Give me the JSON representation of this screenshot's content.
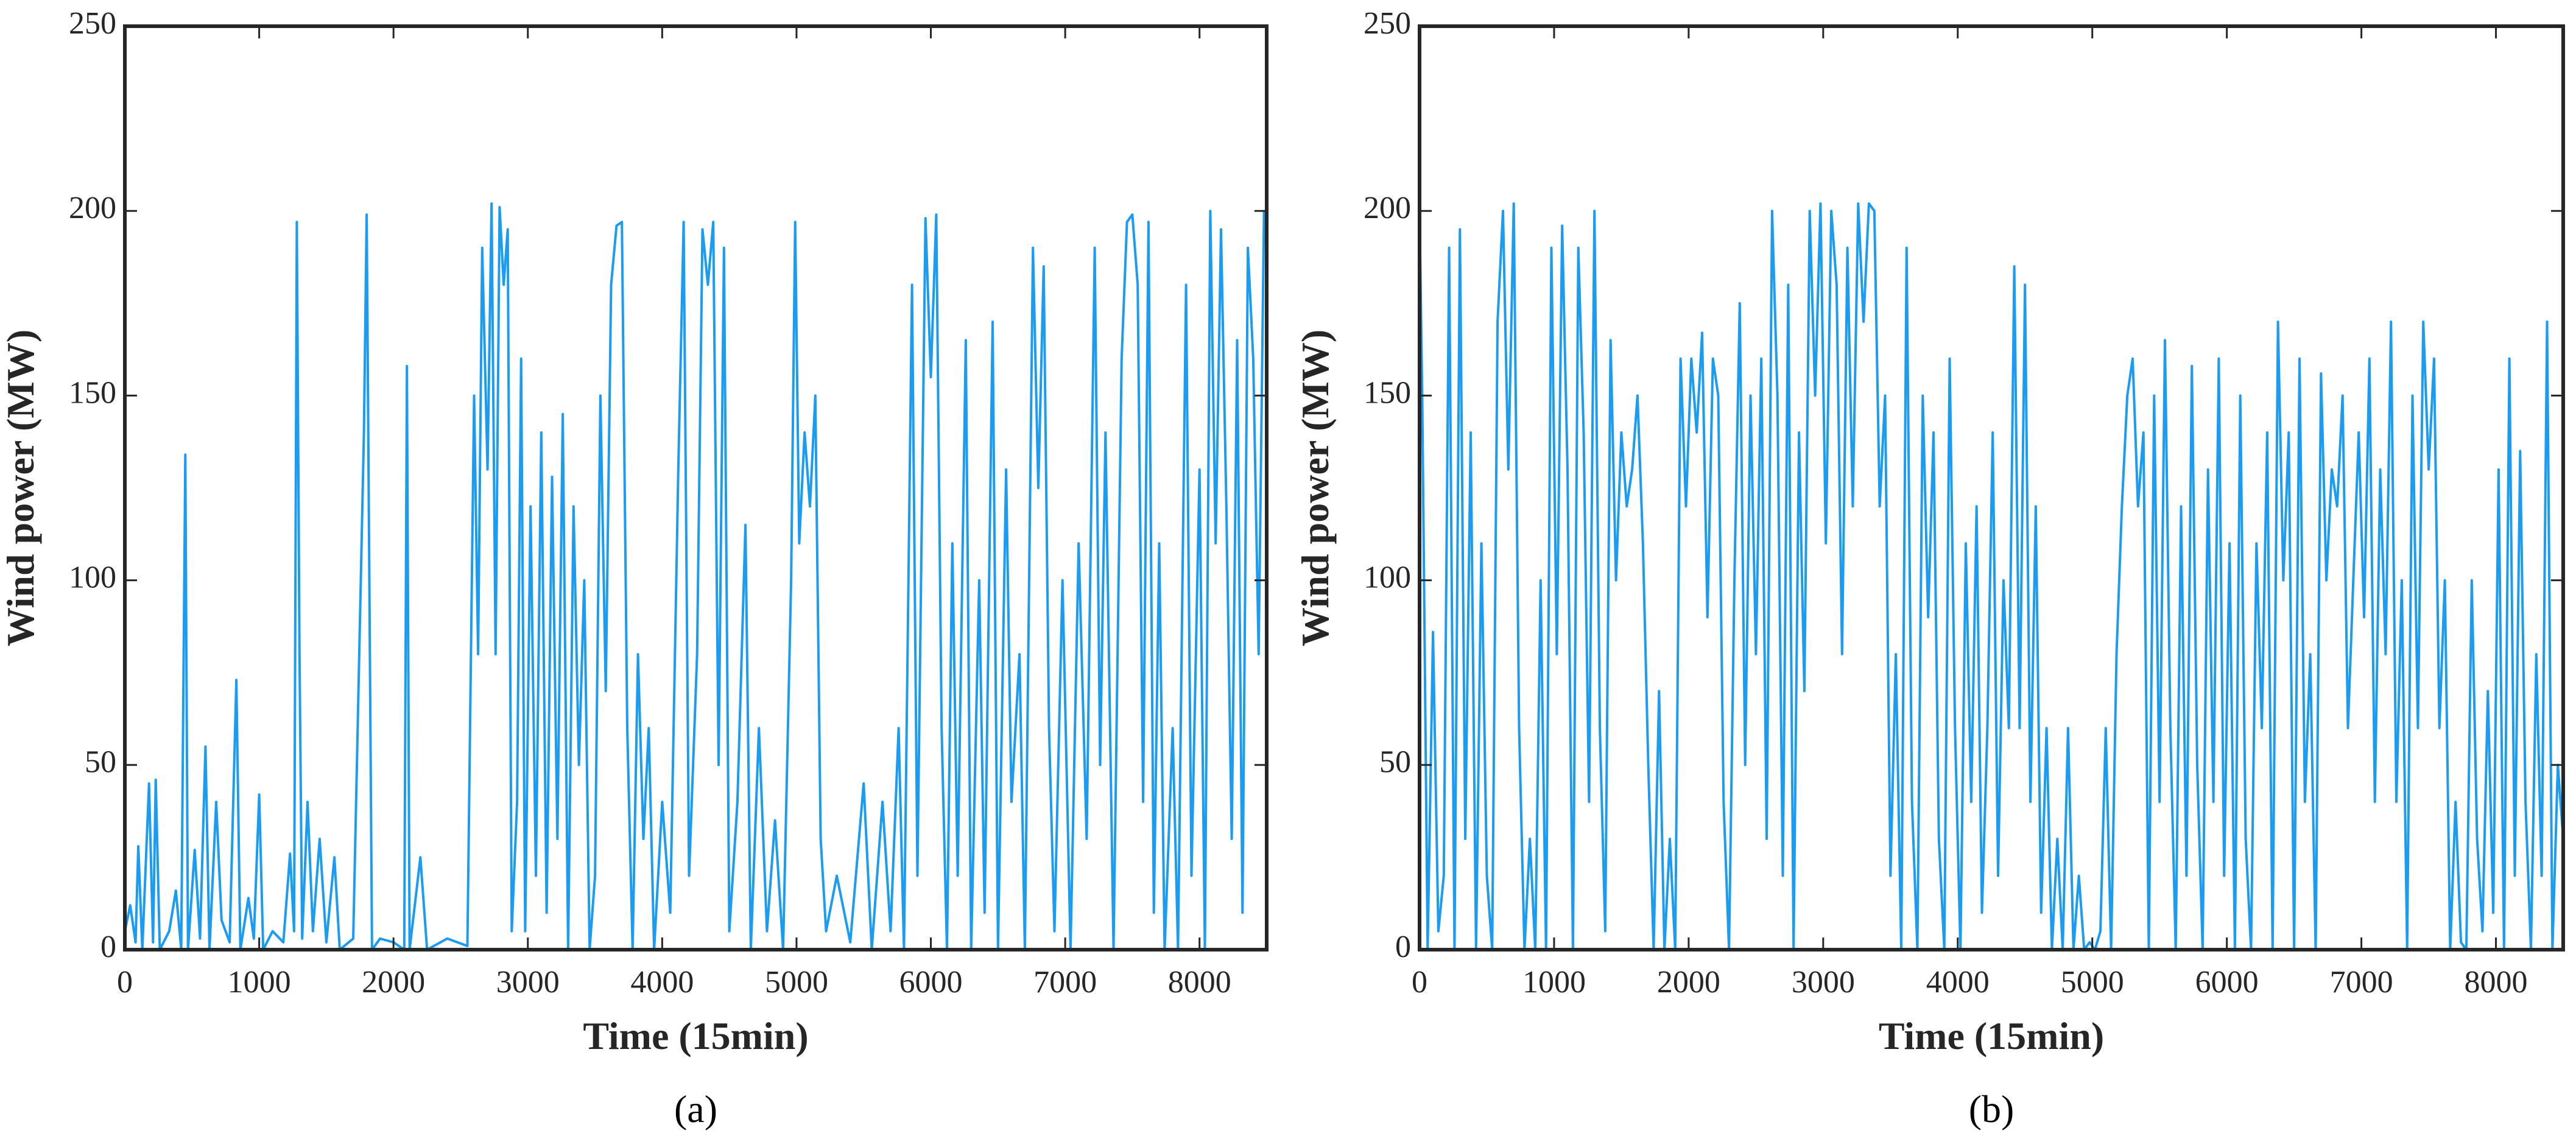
{
  "chart_data": [
    {
      "type": "line",
      "xlabel": "Time (15min)",
      "ylabel": "Wind power (MW)",
      "caption": "(a)",
      "color": "#1a9cf2",
      "xlim": [
        0,
        8500
      ],
      "xticks": [
        0,
        1000,
        2000,
        3000,
        4000,
        5000,
        6000,
        7000,
        8000
      ],
      "ylim": [
        0,
        250
      ],
      "yticks": [
        0,
        50,
        100,
        150,
        200,
        250
      ],
      "x": [
        0,
        40,
        80,
        100,
        130,
        180,
        210,
        230,
        260,
        330,
        380,
        420,
        450,
        470,
        520,
        560,
        600,
        630,
        680,
        720,
        780,
        830,
        860,
        920,
        960,
        1000,
        1030,
        1100,
        1180,
        1230,
        1260,
        1280,
        1300,
        1320,
        1360,
        1400,
        1450,
        1500,
        1560,
        1600,
        1700,
        1780,
        1800,
        1820,
        1840,
        1900,
        2000,
        2080,
        2100,
        2120,
        2200,
        2250,
        2400,
        2550,
        2600,
        2630,
        2660,
        2700,
        2730,
        2760,
        2790,
        2820,
        2850,
        2880,
        2920,
        2950,
        2980,
        3020,
        3060,
        3100,
        3140,
        3180,
        3220,
        3260,
        3300,
        3340,
        3380,
        3420,
        3460,
        3500,
        3540,
        3580,
        3620,
        3660,
        3700,
        3740,
        3780,
        3820,
        3860,
        3900,
        3940,
        4000,
        4060,
        4120,
        4160,
        4200,
        4260,
        4300,
        4340,
        4380,
        4420,
        4460,
        4500,
        4560,
        4620,
        4660,
        4720,
        4780,
        4840,
        4900,
        4960,
        4990,
        5020,
        5060,
        5100,
        5140,
        5180,
        5220,
        5300,
        5400,
        5500,
        5560,
        5640,
        5700,
        5760,
        5800,
        5860,
        5900,
        5960,
        6000,
        6040,
        6080,
        6120,
        6160,
        6200,
        6260,
        6300,
        6360,
        6400,
        6460,
        6500,
        6560,
        6600,
        6660,
        6700,
        6760,
        6800,
        6840,
        6880,
        6920,
        6980,
        7040,
        7100,
        7160,
        7220,
        7260,
        7300,
        7360,
        7420,
        7460,
        7500,
        7540,
        7580,
        7620,
        7660,
        7700,
        7740,
        7800,
        7840,
        7900,
        7940,
        8000,
        8040,
        8080,
        8120,
        8160,
        8200,
        8240,
        8280,
        8320,
        8360,
        8400,
        8440,
        8480
      ],
      "values": [
        5,
        12,
        2,
        28,
        0,
        45,
        2,
        46,
        0,
        5,
        16,
        0,
        134,
        0,
        27,
        3,
        55,
        0,
        40,
        8,
        2,
        73,
        0,
        14,
        3,
        42,
        0,
        5,
        2,
        26,
        5,
        197,
        80,
        3,
        40,
        5,
        30,
        2,
        25,
        0,
        3,
        140,
        199,
        100,
        0,
        3,
        2,
        0,
        158,
        0,
        25,
        0,
        3,
        1,
        150,
        80,
        190,
        130,
        202,
        80,
        201,
        180,
        195,
        5,
        40,
        160,
        5,
        120,
        20,
        140,
        10,
        128,
        30,
        145,
        0,
        120,
        50,
        100,
        0,
        20,
        150,
        70,
        180,
        196,
        197,
        60,
        0,
        80,
        30,
        60,
        0,
        40,
        10,
        130,
        197,
        20,
        80,
        195,
        180,
        197,
        50,
        190,
        5,
        40,
        115,
        0,
        60,
        5,
        35,
        0,
        100,
        197,
        110,
        140,
        120,
        150,
        30,
        5,
        20,
        2,
        45,
        0,
        40,
        5,
        60,
        0,
        180,
        20,
        198,
        155,
        199,
        60,
        0,
        110,
        20,
        165,
        0,
        100,
        10,
        170,
        0,
        130,
        40,
        80,
        0,
        190,
        125,
        185,
        60,
        5,
        100,
        0,
        110,
        30,
        190,
        50,
        140,
        0,
        160,
        197,
        199,
        180,
        40,
        197,
        10,
        110,
        0,
        60,
        0,
        180,
        20,
        130,
        0,
        200,
        110,
        195,
        120,
        30,
        165,
        10,
        190,
        160,
        80,
        200
      ]
    },
    {
      "type": "line",
      "xlabel": "Time (15min)",
      "ylabel": "Wind power (MW)",
      "caption": "(b)",
      "color": "#1a9cf2",
      "xlim": [
        0,
        8500
      ],
      "xticks": [
        0,
        1000,
        2000,
        3000,
        4000,
        5000,
        6000,
        7000,
        8000
      ],
      "ylim": [
        0,
        250
      ],
      "yticks": [
        0,
        50,
        100,
        150,
        200,
        250
      ],
      "x": [
        0,
        20,
        60,
        100,
        140,
        180,
        220,
        260,
        300,
        340,
        380,
        420,
        460,
        500,
        540,
        580,
        620,
        660,
        700,
        740,
        780,
        820,
        860,
        900,
        940,
        980,
        1020,
        1060,
        1100,
        1140,
        1180,
        1220,
        1260,
        1300,
        1340,
        1380,
        1420,
        1460,
        1500,
        1540,
        1580,
        1620,
        1660,
        1700,
        1740,
        1780,
        1820,
        1860,
        1900,
        1940,
        1980,
        2020,
        2060,
        2100,
        2140,
        2180,
        2220,
        2260,
        2300,
        2340,
        2380,
        2420,
        2460,
        2500,
        2540,
        2580,
        2620,
        2660,
        2700,
        2740,
        2780,
        2820,
        2860,
        2900,
        2940,
        2980,
        3020,
        3060,
        3100,
        3140,
        3180,
        3220,
        3260,
        3300,
        3340,
        3380,
        3420,
        3460,
        3500,
        3540,
        3580,
        3620,
        3660,
        3700,
        3740,
        3780,
        3820,
        3860,
        3900,
        3940,
        3980,
        4020,
        4060,
        4100,
        4140,
        4180,
        4220,
        4260,
        4300,
        4340,
        4380,
        4420,
        4460,
        4500,
        4540,
        4580,
        4620,
        4660,
        4700,
        4740,
        4780,
        4820,
        4860,
        4900,
        4940,
        4980,
        5020,
        5060,
        5100,
        5140,
        5180,
        5220,
        5260,
        5300,
        5340,
        5380,
        5420,
        5460,
        5500,
        5540,
        5580,
        5620,
        5660,
        5700,
        5740,
        5780,
        5820,
        5860,
        5900,
        5940,
        5980,
        6020,
        6060,
        6100,
        6140,
        6180,
        6220,
        6260,
        6300,
        6340,
        6380,
        6420,
        6460,
        6500,
        6540,
        6580,
        6620,
        6660,
        6700,
        6740,
        6780,
        6820,
        6860,
        6900,
        6940,
        6980,
        7020,
        7060,
        7100,
        7140,
        7180,
        7220,
        7260,
        7300,
        7340,
        7380,
        7420,
        7460,
        7500,
        7540,
        7580,
        7620,
        7660,
        7700,
        7740,
        7780,
        7820,
        7860,
        7900,
        7940,
        7980,
        8020,
        8060,
        8100,
        8140,
        8180,
        8220,
        8260,
        8300,
        8340,
        8380,
        8420,
        8460,
        8500
      ],
      "values": [
        200,
        150,
        0,
        86,
        5,
        20,
        190,
        0,
        195,
        30,
        140,
        0,
        110,
        20,
        0,
        170,
        200,
        130,
        202,
        60,
        0,
        30,
        0,
        100,
        0,
        190,
        80,
        196,
        130,
        0,
        190,
        140,
        40,
        200,
        60,
        5,
        165,
        100,
        140,
        120,
        130,
        150,
        110,
        50,
        0,
        70,
        0,
        30,
        0,
        160,
        120,
        160,
        140,
        167,
        90,
        160,
        150,
        40,
        0,
        100,
        175,
        50,
        150,
        80,
        160,
        30,
        200,
        150,
        20,
        180,
        0,
        140,
        70,
        200,
        150,
        202,
        110,
        200,
        180,
        80,
        190,
        120,
        202,
        170,
        202,
        200,
        120,
        150,
        20,
        80,
        0,
        190,
        40,
        0,
        150,
        90,
        140,
        30,
        0,
        160,
        60,
        0,
        110,
        40,
        120,
        10,
        60,
        140,
        20,
        100,
        60,
        185,
        60,
        180,
        40,
        120,
        10,
        60,
        0,
        30,
        0,
        60,
        0,
        20,
        0,
        2,
        0,
        5,
        60,
        0,
        80,
        120,
        150,
        160,
        120,
        140,
        0,
        150,
        40,
        165,
        60,
        0,
        120,
        20,
        158,
        50,
        0,
        130,
        40,
        160,
        20,
        110,
        0,
        150,
        30,
        0,
        110,
        60,
        140,
        0,
        170,
        100,
        140,
        0,
        160,
        40,
        80,
        0,
        156,
        100,
        130,
        120,
        150,
        60,
        100,
        140,
        90,
        160,
        40,
        130,
        80,
        170,
        40,
        100,
        0,
        150,
        60,
        170,
        130,
        160,
        60,
        100,
        0,
        40,
        2,
        0,
        100,
        30,
        5,
        70,
        10,
        130,
        0,
        160,
        20,
        135,
        40,
        0,
        80,
        20,
        170,
        0,
        50,
        30
      ]
    }
  ]
}
